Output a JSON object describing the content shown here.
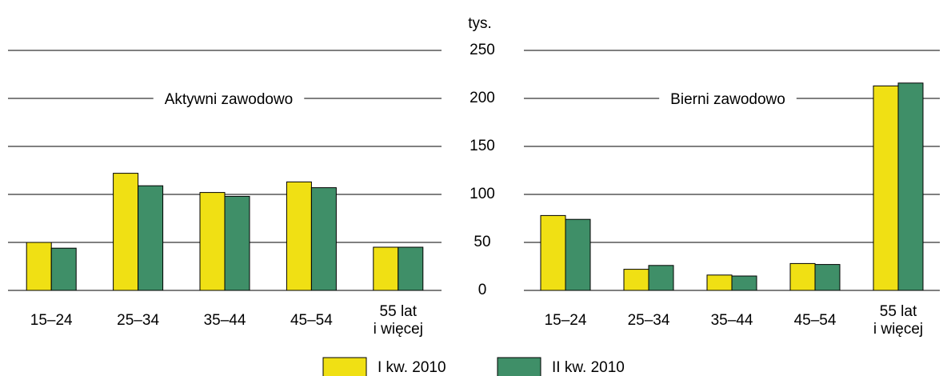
{
  "chart_data": {
    "type": "bar",
    "unit": "tys.",
    "ylim": [
      0,
      250
    ],
    "yticks": [
      0,
      50,
      100,
      150,
      200,
      250
    ],
    "grid": true,
    "categories": [
      "15–24",
      "25–34",
      "35–44",
      "45–54",
      "55 lat\ni więcej"
    ],
    "series": [
      {
        "name": "I kw. 2010",
        "color": "#f0e014"
      },
      {
        "name": "II kw. 2010",
        "color": "#3f8f68"
      }
    ],
    "panels": [
      {
        "title": "Aktywni zawodowo",
        "values": [
          [
            50,
            122,
            102,
            113,
            45
          ],
          [
            44,
            109,
            98,
            107,
            45
          ]
        ]
      },
      {
        "title": "Bierni zawodowo",
        "values": [
          [
            78,
            22,
            16,
            28,
            213
          ],
          [
            74,
            26,
            15,
            27,
            216
          ]
        ]
      }
    ]
  }
}
